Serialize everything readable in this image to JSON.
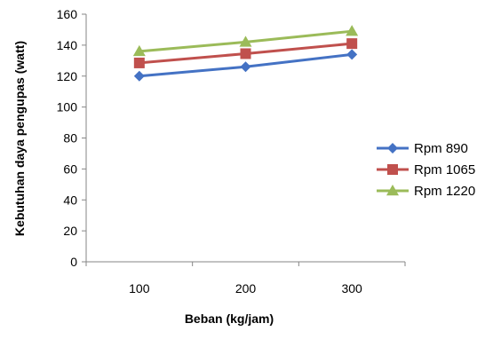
{
  "chart_data": {
    "type": "line",
    "title": "",
    "xlabel": "Beban (kg/jam)",
    "ylabel": "Kebutuhan daya pengupas (watt)",
    "categories": [
      "100",
      "200",
      "300"
    ],
    "ylim": [
      0,
      160
    ],
    "yticks": [
      0,
      20,
      40,
      60,
      80,
      100,
      120,
      140,
      160
    ],
    "grid": false,
    "legend_position": "right",
    "series": [
      {
        "name": "Rpm 890",
        "values": [
          120,
          126,
          134
        ],
        "color": "#4472C4",
        "marker": "diamond"
      },
      {
        "name": "Rpm 1065",
        "values": [
          128.5,
          134.5,
          141
        ],
        "color": "#C0504D",
        "marker": "square"
      },
      {
        "name": "Rpm 1220",
        "values": [
          136,
          142,
          149
        ],
        "color": "#9BBB59",
        "marker": "triangle"
      }
    ]
  }
}
